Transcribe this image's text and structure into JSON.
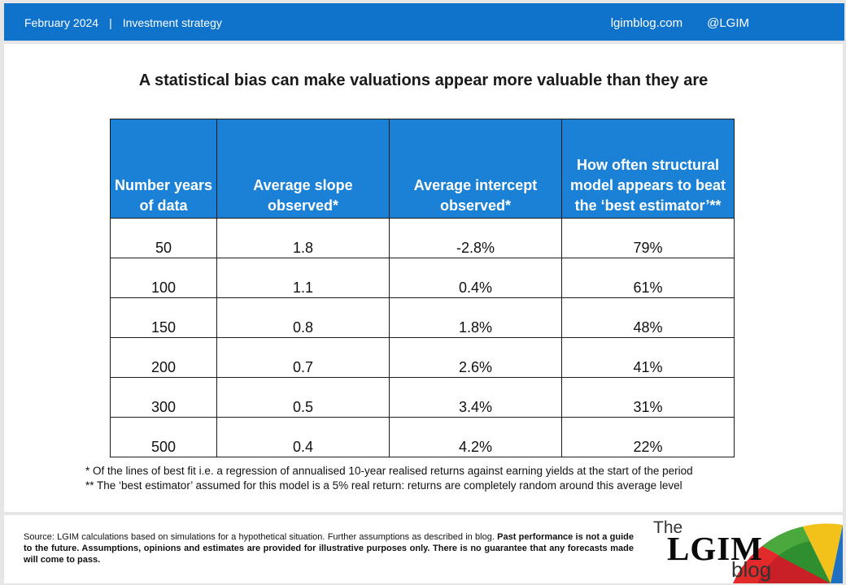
{
  "header": {
    "date": "February 2024",
    "separator": "|",
    "section": "Investment strategy",
    "site": "lgimblog.com",
    "handle": "@LGIM"
  },
  "title": "A statistical bias can make valuations appear more valuable than they are",
  "table": {
    "columns": [
      "Number years of data",
      "Average slope observed*",
      "Average intercept observed*",
      "How often structural model appears to beat the ‘best estimator’**"
    ],
    "rows": [
      [
        "50",
        "1.8",
        "-2.8%",
        "79%"
      ],
      [
        "100",
        "1.1",
        "0.4%",
        "61%"
      ],
      [
        "150",
        "0.8",
        "1.8%",
        "48%"
      ],
      [
        "200",
        "0.7",
        "2.6%",
        "41%"
      ],
      [
        "300",
        "0.5",
        "3.4%",
        "31%"
      ],
      [
        "500",
        "0.4",
        "4.2%",
        "22%"
      ]
    ]
  },
  "notes": [
    "* Of the lines of best fit i.e. a regression of annualised 10-year realised returns against earning yields at the start of the period",
    "** The ‘best estimator’ assumed for this model is a 5% real return: returns are completely random around this average level"
  ],
  "source": {
    "plain": "Source: LGIM calculations based on simulations for a hypothetical situation. Further assumptions as described in blog.",
    "bold": "Past performance is not a guide to the future. Assumptions, opinions and estimates are provided for illustrative purposes only. There is no guarantee that any forecasts made will come to pass."
  },
  "logo": {
    "the": "The",
    "name": "LGIM",
    "blog": "blog"
  },
  "colors": {
    "header_bar": "#0f73cc",
    "table_header": "#1a81d6",
    "umbrella_red": "#e32a2a",
    "umbrella_green": "#4aa83c",
    "umbrella_yellow": "#f2c21b",
    "umbrella_blue": "#1f70c1"
  }
}
